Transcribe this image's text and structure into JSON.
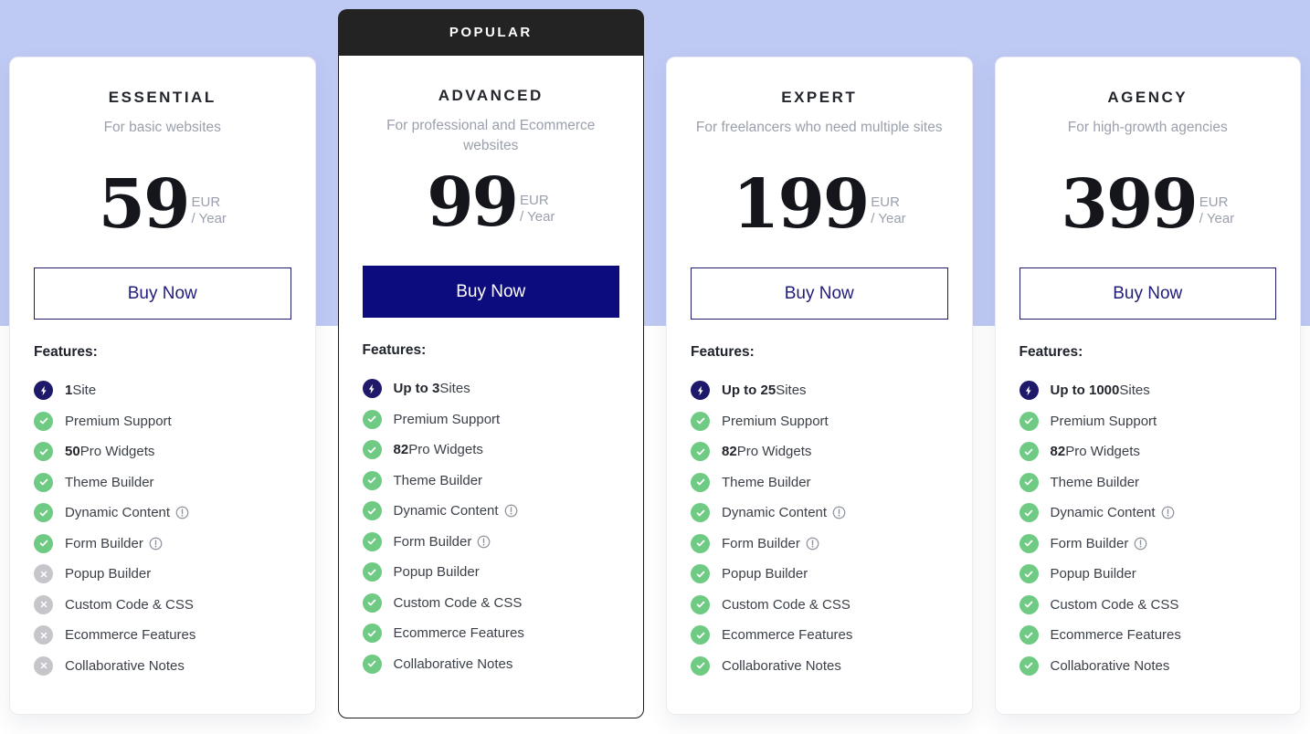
{
  "page": {
    "band_color": "#bfcaf4",
    "popular_badge_label": "POPULAR",
    "features_heading": "Features:"
  },
  "colors": {
    "accent_navy": "#0d0c7e",
    "check_green": "#6fca83",
    "cross_gray": "#c6c6ca",
    "bolt_navy": "#1e1a69",
    "badge_dark": "#232323"
  },
  "plans": [
    {
      "name": "ESSENTIAL",
      "description": "For basic websites",
      "price": "59",
      "currency": "EUR",
      "period": "/ Year",
      "button_label": "Buy Now",
      "popular": false,
      "features": [
        {
          "icon": "bolt",
          "bold": "1",
          "text": "Site"
        },
        {
          "icon": "check",
          "bold": "",
          "text": "Premium Support"
        },
        {
          "icon": "check",
          "bold": "50",
          "text": "Pro Widgets"
        },
        {
          "icon": "check",
          "bold": "",
          "text": "Theme Builder"
        },
        {
          "icon": "check",
          "bold": "",
          "text": "Dynamic Content",
          "info": true
        },
        {
          "icon": "check",
          "bold": "",
          "text": "Form Builder",
          "info": true
        },
        {
          "icon": "cross",
          "bold": "",
          "text": "Popup Builder"
        },
        {
          "icon": "cross",
          "bold": "",
          "text": "Custom Code & CSS"
        },
        {
          "icon": "cross",
          "bold": "",
          "text": "Ecommerce Features"
        },
        {
          "icon": "cross",
          "bold": "",
          "text": "Collaborative Notes"
        }
      ]
    },
    {
      "name": "ADVANCED",
      "description": "For professional and Ecommerce websites",
      "price": "99",
      "currency": "EUR",
      "period": "/ Year",
      "button_label": "Buy Now",
      "popular": true,
      "features": [
        {
          "icon": "bolt",
          "bold": "Up to 3",
          "text": "Sites"
        },
        {
          "icon": "check",
          "bold": "",
          "text": "Premium Support"
        },
        {
          "icon": "check",
          "bold": "82",
          "text": "Pro Widgets"
        },
        {
          "icon": "check",
          "bold": "",
          "text": "Theme Builder"
        },
        {
          "icon": "check",
          "bold": "",
          "text": "Dynamic Content",
          "info": true
        },
        {
          "icon": "check",
          "bold": "",
          "text": "Form Builder",
          "info": true
        },
        {
          "icon": "check",
          "bold": "",
          "text": "Popup Builder"
        },
        {
          "icon": "check",
          "bold": "",
          "text": "Custom Code & CSS"
        },
        {
          "icon": "check",
          "bold": "",
          "text": "Ecommerce Features"
        },
        {
          "icon": "check",
          "bold": "",
          "text": "Collaborative Notes"
        }
      ]
    },
    {
      "name": "EXPERT",
      "description": "For freelancers who need multiple sites",
      "price": "199",
      "currency": "EUR",
      "period": "/ Year",
      "button_label": "Buy Now",
      "popular": false,
      "features": [
        {
          "icon": "bolt",
          "bold": "Up to 25",
          "text": "Sites"
        },
        {
          "icon": "check",
          "bold": "",
          "text": "Premium Support"
        },
        {
          "icon": "check",
          "bold": "82",
          "text": "Pro Widgets"
        },
        {
          "icon": "check",
          "bold": "",
          "text": "Theme Builder"
        },
        {
          "icon": "check",
          "bold": "",
          "text": "Dynamic Content",
          "info": true
        },
        {
          "icon": "check",
          "bold": "",
          "text": "Form Builder",
          "info": true
        },
        {
          "icon": "check",
          "bold": "",
          "text": "Popup Builder"
        },
        {
          "icon": "check",
          "bold": "",
          "text": "Custom Code & CSS"
        },
        {
          "icon": "check",
          "bold": "",
          "text": "Ecommerce Features"
        },
        {
          "icon": "check",
          "bold": "",
          "text": "Collaborative Notes"
        }
      ]
    },
    {
      "name": "AGENCY",
      "description": "For high-growth agencies",
      "price": "399",
      "currency": "EUR",
      "period": "/ Year",
      "button_label": "Buy Now",
      "popular": false,
      "features": [
        {
          "icon": "bolt",
          "bold": "Up to 1000",
          "text": "Sites"
        },
        {
          "icon": "check",
          "bold": "",
          "text": "Premium Support"
        },
        {
          "icon": "check",
          "bold": "82",
          "text": "Pro Widgets"
        },
        {
          "icon": "check",
          "bold": "",
          "text": "Theme Builder"
        },
        {
          "icon": "check",
          "bold": "",
          "text": "Dynamic Content",
          "info": true
        },
        {
          "icon": "check",
          "bold": "",
          "text": "Form Builder",
          "info": true
        },
        {
          "icon": "check",
          "bold": "",
          "text": "Popup Builder"
        },
        {
          "icon": "check",
          "bold": "",
          "text": "Custom Code & CSS"
        },
        {
          "icon": "check",
          "bold": "",
          "text": "Ecommerce Features"
        },
        {
          "icon": "check",
          "bold": "",
          "text": "Collaborative Notes"
        }
      ]
    }
  ]
}
